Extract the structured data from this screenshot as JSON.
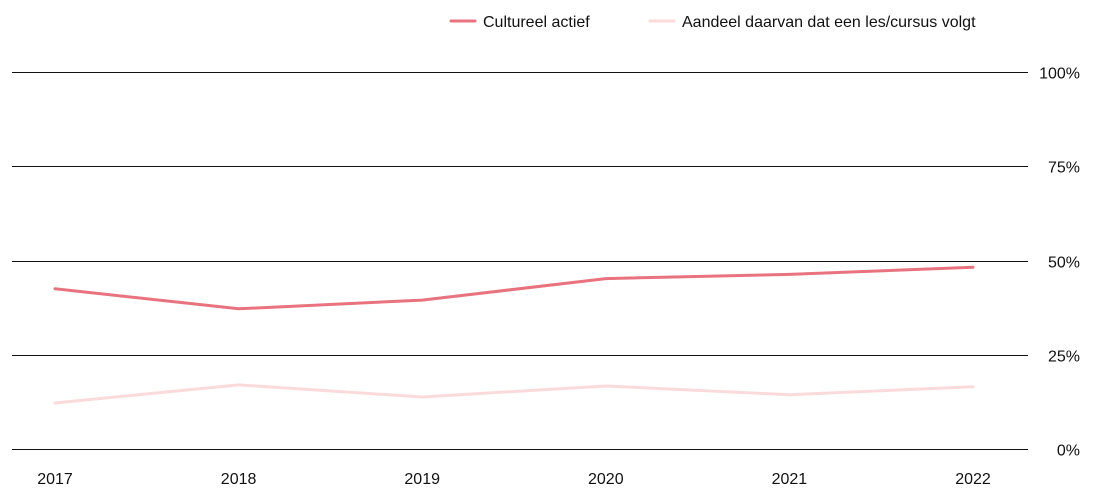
{
  "chart_data": {
    "type": "line",
    "title": "",
    "xlabel": "",
    "ylabel": "",
    "x": [
      "2017",
      "2018",
      "2019",
      "2020",
      "2021",
      "2022"
    ],
    "series": [
      {
        "name": "Cultureel actief",
        "color": "#e8737f",
        "values": [
          42.5,
          37.2,
          39.5,
          45.2,
          46.3,
          48.2
        ]
      },
      {
        "name": "Aandeel daarvan dat een les/cursus volgt",
        "color": "#fbdadc",
        "values": [
          12.2,
          17.0,
          13.8,
          16.7,
          14.4,
          16.5
        ]
      }
    ],
    "ylim": [
      0,
      100
    ],
    "yticks": [
      {
        "value": 0,
        "label": "0%"
      },
      {
        "value": 25,
        "label": "25%"
      },
      {
        "value": 50,
        "label": "50%"
      },
      {
        "value": 75,
        "label": "75%"
      },
      {
        "value": 100,
        "label": "100%"
      }
    ],
    "grid": true,
    "legend_position": "top-right",
    "y_axis_side": "right"
  }
}
